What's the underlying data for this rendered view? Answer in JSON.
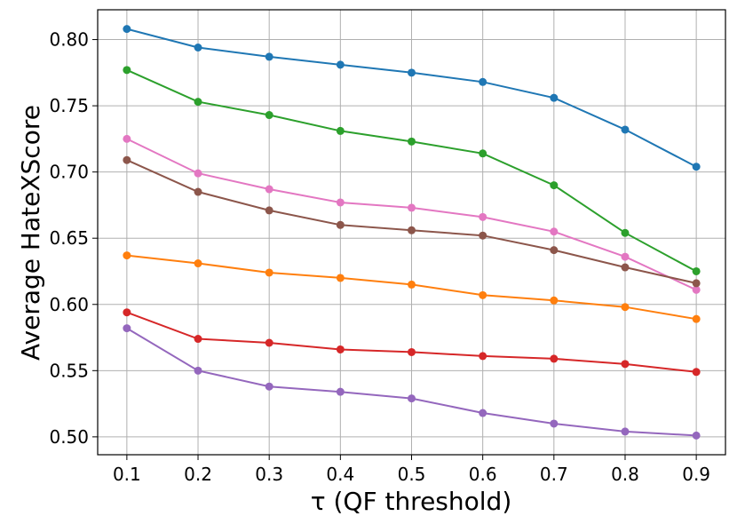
{
  "chart_data": {
    "type": "line",
    "title": "",
    "xlabel": "τ (QF threshold)",
    "ylabel": "Average HateXScore",
    "x": [
      0.1,
      0.2,
      0.3,
      0.4,
      0.5,
      0.6,
      0.7,
      0.8,
      0.9
    ],
    "x_tick_labels": [
      "0.1",
      "0.2",
      "0.3",
      "0.4",
      "0.5",
      "0.6",
      "0.7",
      "0.8",
      "0.9"
    ],
    "y_ticks": [
      0.5,
      0.55,
      0.6,
      0.65,
      0.7,
      0.75,
      0.8
    ],
    "y_tick_labels": [
      "0.50",
      "0.55",
      "0.60",
      "0.65",
      "0.70",
      "0.75",
      "0.80"
    ],
    "xlim": [
      0.059,
      0.941
    ],
    "ylim": [
      0.4865,
      0.8225
    ],
    "grid": true,
    "legend": "none",
    "series": [
      {
        "name": "blue",
        "color": "#1f77b4",
        "values": [
          0.808,
          0.794,
          0.787,
          0.781,
          0.775,
          0.768,
          0.756,
          0.732,
          0.704
        ]
      },
      {
        "name": "green",
        "color": "#2ca02c",
        "values": [
          0.777,
          0.753,
          0.743,
          0.731,
          0.723,
          0.714,
          0.69,
          0.654,
          0.625
        ]
      },
      {
        "name": "pink",
        "color": "#e377c2",
        "values": [
          0.725,
          0.699,
          0.687,
          0.677,
          0.673,
          0.666,
          0.655,
          0.636,
          0.611
        ]
      },
      {
        "name": "brown",
        "color": "#8c564b",
        "values": [
          0.709,
          0.685,
          0.671,
          0.66,
          0.656,
          0.652,
          0.641,
          0.628,
          0.616
        ]
      },
      {
        "name": "orange",
        "color": "#ff7f0e",
        "values": [
          0.637,
          0.631,
          0.624,
          0.62,
          0.615,
          0.607,
          0.603,
          0.598,
          0.589
        ]
      },
      {
        "name": "red",
        "color": "#d62728",
        "values": [
          0.594,
          0.574,
          0.571,
          0.566,
          0.564,
          0.561,
          0.559,
          0.555,
          0.549
        ]
      },
      {
        "name": "purple",
        "color": "#9467bd",
        "values": [
          0.582,
          0.55,
          0.538,
          0.534,
          0.529,
          0.518,
          0.51,
          0.504,
          0.501
        ]
      }
    ]
  }
}
